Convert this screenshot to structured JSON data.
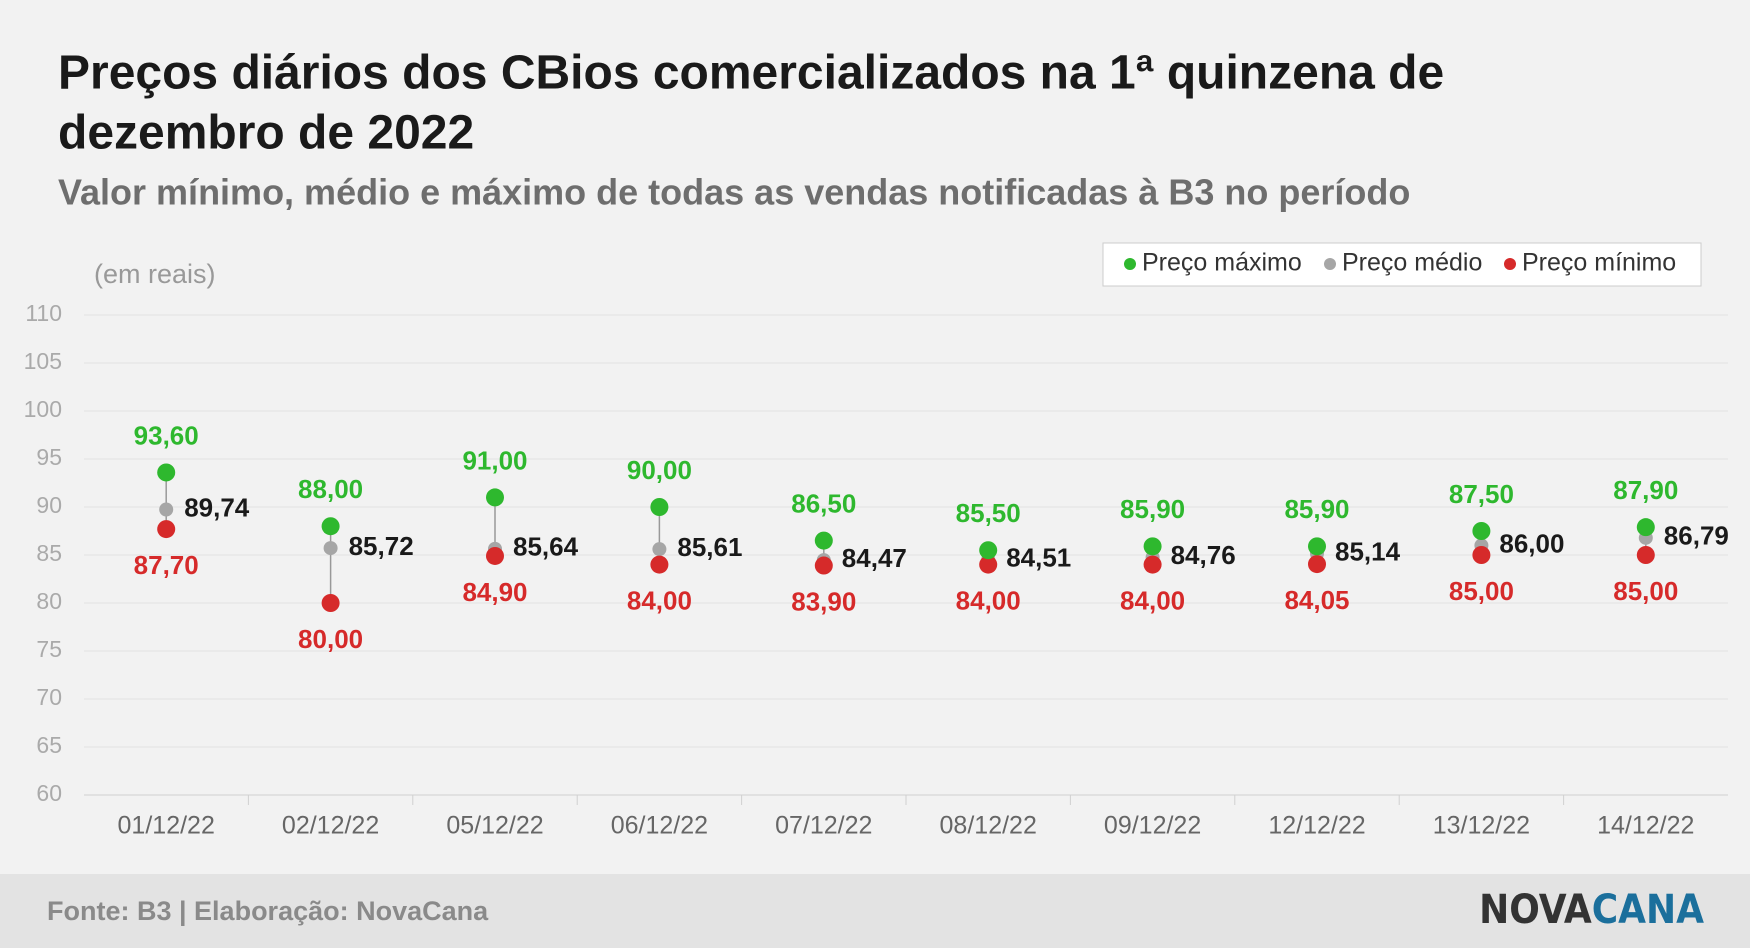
{
  "chart_data": {
    "type": "dot-range",
    "title": [
      "Preços diários dos CBios comercializados na 1ª quinzena de",
      "dezembro de 2022"
    ],
    "subtitle": "Valor mínimo, médio e máximo de todas as vendas notificadas à B3 no período",
    "y_label": "(em reais)",
    "categories": [
      "01/12/22",
      "02/12/22",
      "05/12/22",
      "06/12/22",
      "07/12/22",
      "08/12/22",
      "09/12/22",
      "12/12/22",
      "13/12/22",
      "14/12/22"
    ],
    "series": [
      {
        "name": "Preço máximo",
        "color": "#2eb82e",
        "values": [
          93.6,
          88,
          91,
          90,
          86.5,
          85.5,
          85.9,
          85.9,
          87.5,
          87.9
        ],
        "value_labels": [
          "93,60",
          "88,00",
          "91,00",
          "90,00",
          "86,50",
          "85,50",
          "85,90",
          "85,90",
          "87,50",
          "87,90"
        ]
      },
      {
        "name": "Preço médio",
        "color": "#a6a6a6",
        "values": [
          89.74,
          85.72,
          85.64,
          85.61,
          84.47,
          84.51,
          84.76,
          85.14,
          86,
          86.79
        ],
        "value_labels": [
          "89,74",
          "85,72",
          "85,64",
          "85,61",
          "84,47",
          "84,51",
          "84,76",
          "85,14",
          "86,00",
          "86,79"
        ]
      },
      {
        "name": "Preço mínimo",
        "color": "#d62a2a",
        "values": [
          87.7,
          80,
          84.9,
          84,
          83.9,
          84,
          84,
          84.05,
          85,
          85
        ],
        "value_labels": [
          "87,70",
          "80,00",
          "84,90",
          "84,00",
          "83,90",
          "84,00",
          "84,00",
          "84,05",
          "85,00",
          "85,00"
        ]
      }
    ],
    "ylim": [
      60,
      110
    ],
    "yticks": [
      60,
      65,
      70,
      75,
      80,
      85,
      90,
      95,
      100,
      105,
      110
    ],
    "grid": true,
    "legend": "top-right"
  },
  "footer": {
    "source": "Fonte: B3 | Elaboração: NovaCana",
    "logo": [
      "NOVA",
      "CANA"
    ]
  }
}
